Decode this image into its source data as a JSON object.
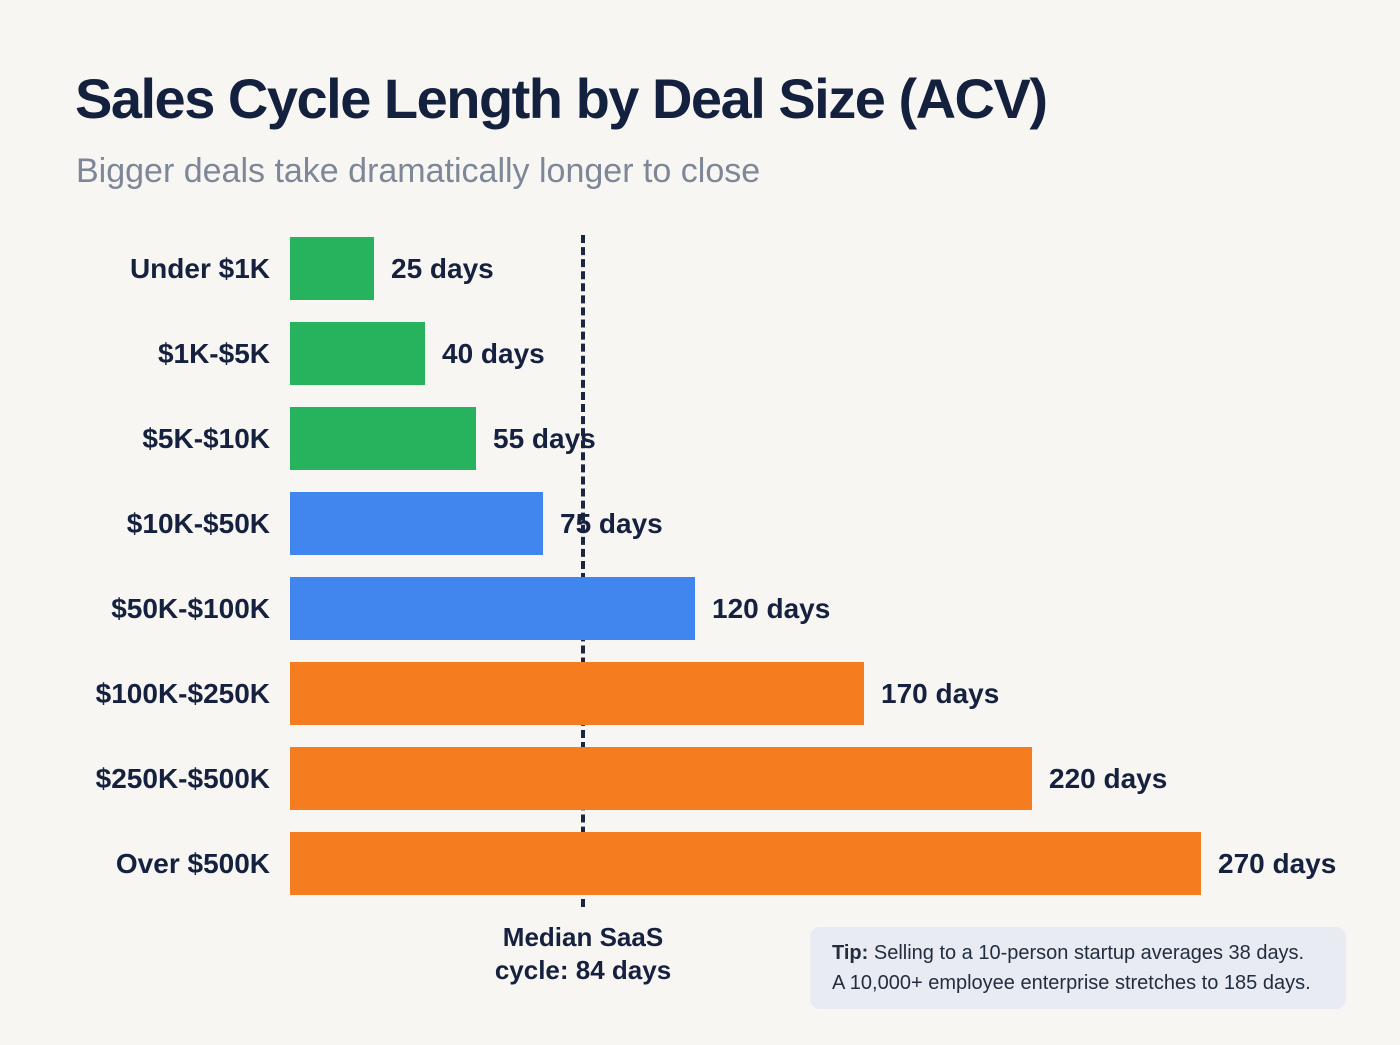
{
  "header": {
    "title": "Sales Cycle Length by Deal Size (ACV)",
    "subtitle": "Bigger deals take dramatically longer to close"
  },
  "chart_data": {
    "type": "bar",
    "orientation": "horizontal",
    "title": "Sales Cycle Length by Deal Size (ACV)",
    "xlabel": "",
    "ylabel": "",
    "unit": "days",
    "categories": [
      "Under $1K",
      "$1K-$5K",
      "$5K-$10K",
      "$10K-$50K",
      "$50K-$100K",
      "$100K-$250K",
      "$250K-$500K",
      "Over $500K"
    ],
    "values": [
      25,
      40,
      55,
      75,
      120,
      170,
      220,
      270
    ],
    "value_labels": [
      "25 days",
      "40 days",
      "55 days",
      "75 days",
      "120 days",
      "170 days",
      "220 days",
      "270 days"
    ],
    "bar_colors": [
      "#27b35e",
      "#27b35e",
      "#27b35e",
      "#4186ef",
      "#4186ef",
      "#f57d20",
      "#f57d20",
      "#f57d20"
    ],
    "xlim": [
      0,
      270
    ],
    "grid": false,
    "legend": false,
    "reference_line": {
      "days": 84,
      "style": "dashed",
      "color": "#1b2742",
      "label_line1": "Median SaaS",
      "label_line2": "cycle: 84 days"
    }
  },
  "colors": {
    "background": "#f8f6f2",
    "green": "#27b35e",
    "blue": "#4186ef",
    "orange": "#f57d20",
    "navy_text": "#15213f",
    "subtitle_gray": "#7d8797",
    "tip_background": "#e8ebf2"
  },
  "tip": {
    "label": "Tip:",
    "line1": " Selling to a 10-person startup averages 38 days.",
    "line2": "A 10,000+ employee enterprise stretches to 185 days."
  }
}
